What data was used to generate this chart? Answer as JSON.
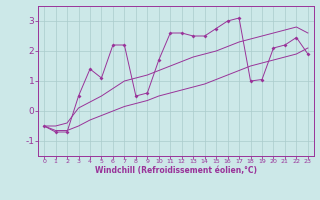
{
  "xlabel": "Windchill (Refroidissement éolien,°C)",
  "x": [
    0,
    1,
    2,
    3,
    4,
    5,
    6,
    7,
    8,
    9,
    10,
    11,
    12,
    13,
    14,
    15,
    16,
    17,
    18,
    19,
    20,
    21,
    22,
    23
  ],
  "line_main": [
    -0.5,
    -0.7,
    -0.7,
    0.5,
    1.4,
    1.1,
    2.2,
    2.2,
    0.5,
    0.6,
    1.7,
    2.6,
    2.6,
    2.5,
    2.5,
    2.75,
    3.0,
    3.1,
    1.0,
    1.05,
    2.1,
    2.2,
    2.45,
    1.9
  ],
  "line_upper": [
    -0.5,
    -0.5,
    -0.4,
    0.1,
    0.3,
    0.5,
    0.75,
    1.0,
    1.1,
    1.2,
    1.35,
    1.5,
    1.65,
    1.8,
    1.9,
    2.0,
    2.15,
    2.3,
    2.4,
    2.5,
    2.6,
    2.7,
    2.8,
    2.6
  ],
  "line_lower": [
    -0.5,
    -0.65,
    -0.65,
    -0.5,
    -0.3,
    -0.15,
    0.0,
    0.15,
    0.25,
    0.35,
    0.5,
    0.6,
    0.7,
    0.8,
    0.9,
    1.05,
    1.2,
    1.35,
    1.5,
    1.6,
    1.7,
    1.8,
    1.9,
    2.1
  ],
  "color": "#993399",
  "bg_color": "#cce8e8",
  "grid_color": "#aacccc",
  "ylim": [
    -1.5,
    3.5
  ],
  "yticks": [
    -1,
    0,
    1,
    2,
    3
  ],
  "xlim": [
    -0.5,
    23.5
  ]
}
